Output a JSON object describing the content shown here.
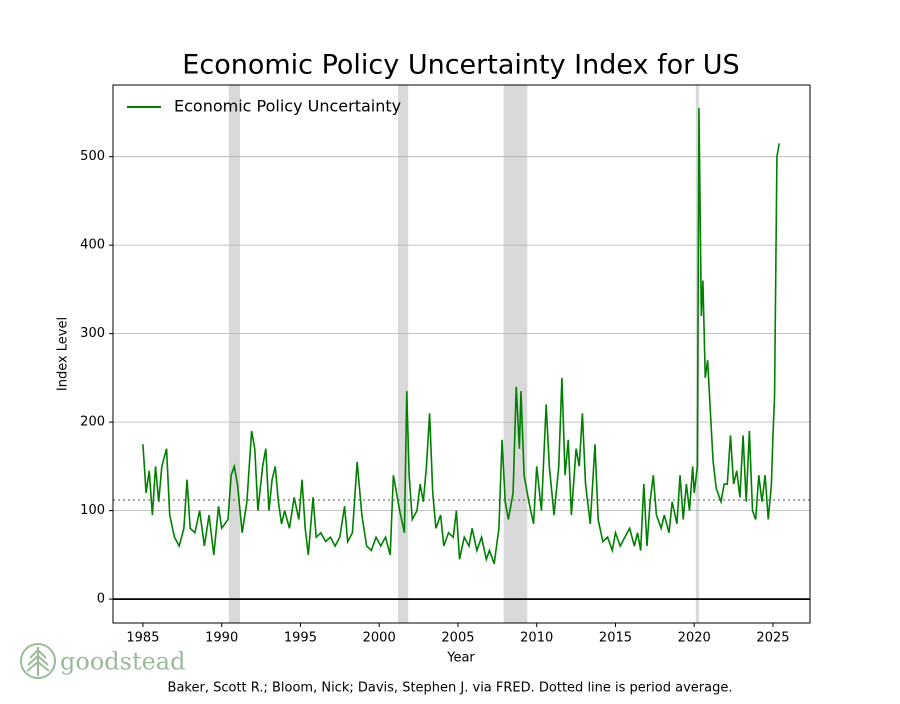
{
  "chart_data": {
    "type": "line",
    "title": "Economic Policy Uncertainty Index for US",
    "x_label": "Year",
    "y_label": "Index Level",
    "source": "Baker, Scott R.; Bloom, Nick; Davis, Stephen J. via FRED. Dotted line is period average.",
    "brand": "goodstead",
    "xlim": [
      1983.1,
      2027.35
    ],
    "ylim": [
      -27,
      581
    ],
    "xticks": [
      1985,
      1990,
      1995,
      2000,
      2005,
      2010,
      2015,
      2020,
      2025
    ],
    "yticks": [
      0,
      100,
      200,
      300,
      400,
      500
    ],
    "grid": true,
    "legend": "upper left",
    "zero_line": true,
    "average": 112,
    "average_color": "#777777",
    "shaded_periods": [
      [
        1990.46,
        1991.16
      ],
      [
        2001.19,
        2001.84
      ],
      [
        2007.9,
        2009.4
      ],
      [
        2020.1,
        2020.3
      ]
    ],
    "shade_color": "#d9d9d9",
    "x": [
      1985.0,
      1985.2,
      1985.4,
      1985.6,
      1985.8,
      1986.0,
      1986.2,
      1986.5,
      1986.7,
      1987.0,
      1987.3,
      1987.6,
      1987.8,
      1988.0,
      1988.3,
      1988.6,
      1988.9,
      1989.2,
      1989.5,
      1989.8,
      1990.0,
      1990.4,
      1990.6,
      1990.8,
      1991.0,
      1991.3,
      1991.6,
      1991.9,
      1992.1,
      1992.3,
      1992.6,
      1992.8,
      1993.0,
      1993.2,
      1993.4,
      1993.6,
      1993.8,
      1994.0,
      1994.3,
      1994.6,
      1994.9,
      1995.1,
      1995.3,
      1995.5,
      1995.8,
      1996.0,
      1996.3,
      1996.6,
      1996.9,
      1997.2,
      1997.5,
      1997.8,
      1998.0,
      1998.3,
      1998.6,
      1998.9,
      1999.2,
      1999.5,
      1999.8,
      2000.1,
      2000.4,
      2000.7,
      2000.9,
      2001.1,
      2001.3,
      2001.6,
      2001.75,
      2001.9,
      2002.1,
      2002.4,
      2002.6,
      2002.8,
      2003.0,
      2003.2,
      2003.4,
      2003.6,
      2003.9,
      2004.1,
      2004.4,
      2004.7,
      2004.9,
      2005.1,
      2005.4,
      2005.7,
      2005.9,
      2006.2,
      2006.5,
      2006.8,
      2007.0,
      2007.3,
      2007.6,
      2007.8,
      2008.0,
      2008.2,
      2008.5,
      2008.7,
      2008.9,
      2009.0,
      2009.2,
      2009.5,
      2009.8,
      2010.0,
      2010.3,
      2010.6,
      2010.8,
      2011.1,
      2011.4,
      2011.6,
      2011.8,
      2012.0,
      2012.2,
      2012.5,
      2012.7,
      2012.9,
      2013.1,
      2013.4,
      2013.7,
      2013.9,
      2014.2,
      2014.5,
      2014.8,
      2015.0,
      2015.3,
      2015.6,
      2015.9,
      2016.2,
      2016.4,
      2016.6,
      2016.8,
      2017.0,
      2017.2,
      2017.4,
      2017.6,
      2017.9,
      2018.1,
      2018.4,
      2018.6,
      2018.9,
      2019.1,
      2019.3,
      2019.5,
      2019.7,
      2019.9,
      2020.0,
      2020.2,
      2020.3,
      2020.45,
      2020.55,
      2020.7,
      2020.85,
      2021.0,
      2021.2,
      2021.4,
      2021.7,
      2021.9,
      2022.1,
      2022.3,
      2022.5,
      2022.7,
      2022.9,
      2023.1,
      2023.3,
      2023.5,
      2023.7,
      2023.9,
      2024.1,
      2024.3,
      2024.5,
      2024.7,
      2024.9,
      2025.0,
      2025.1,
      2025.25,
      2025.4
    ],
    "series": [
      {
        "name": "Economic Policy Uncertainty",
        "color": "#008000",
        "values": [
          175,
          120,
          145,
          95,
          150,
          110,
          150,
          170,
          95,
          70,
          60,
          80,
          135,
          80,
          75,
          100,
          60,
          95,
          50,
          105,
          80,
          90,
          140,
          150,
          130,
          75,
          110,
          190,
          170,
          100,
          150,
          170,
          100,
          135,
          150,
          110,
          85,
          100,
          80,
          115,
          90,
          135,
          80,
          50,
          115,
          70,
          75,
          65,
          70,
          60,
          70,
          105,
          65,
          75,
          155,
          95,
          60,
          55,
          70,
          60,
          70,
          50,
          140,
          120,
          100,
          75,
          235,
          140,
          90,
          100,
          130,
          110,
          150,
          210,
          120,
          80,
          95,
          60,
          75,
          70,
          100,
          45,
          70,
          60,
          80,
          55,
          70,
          45,
          55,
          40,
          80,
          180,
          110,
          90,
          120,
          240,
          170,
          235,
          140,
          110,
          85,
          150,
          100,
          220,
          150,
          95,
          150,
          250,
          140,
          180,
          95,
          170,
          150,
          210,
          130,
          85,
          175,
          90,
          65,
          70,
          55,
          75,
          60,
          70,
          80,
          60,
          75,
          55,
          130,
          60,
          110,
          140,
          95,
          80,
          95,
          75,
          110,
          85,
          140,
          90,
          130,
          100,
          150,
          120,
          150,
          555,
          320,
          360,
          250,
          270,
          220,
          155,
          125,
          110,
          130,
          130,
          185,
          130,
          145,
          115,
          185,
          110,
          190,
          100,
          90,
          140,
          110,
          140,
          90,
          130,
          185,
          230,
          500,
          515
        ]
      }
    ]
  }
}
